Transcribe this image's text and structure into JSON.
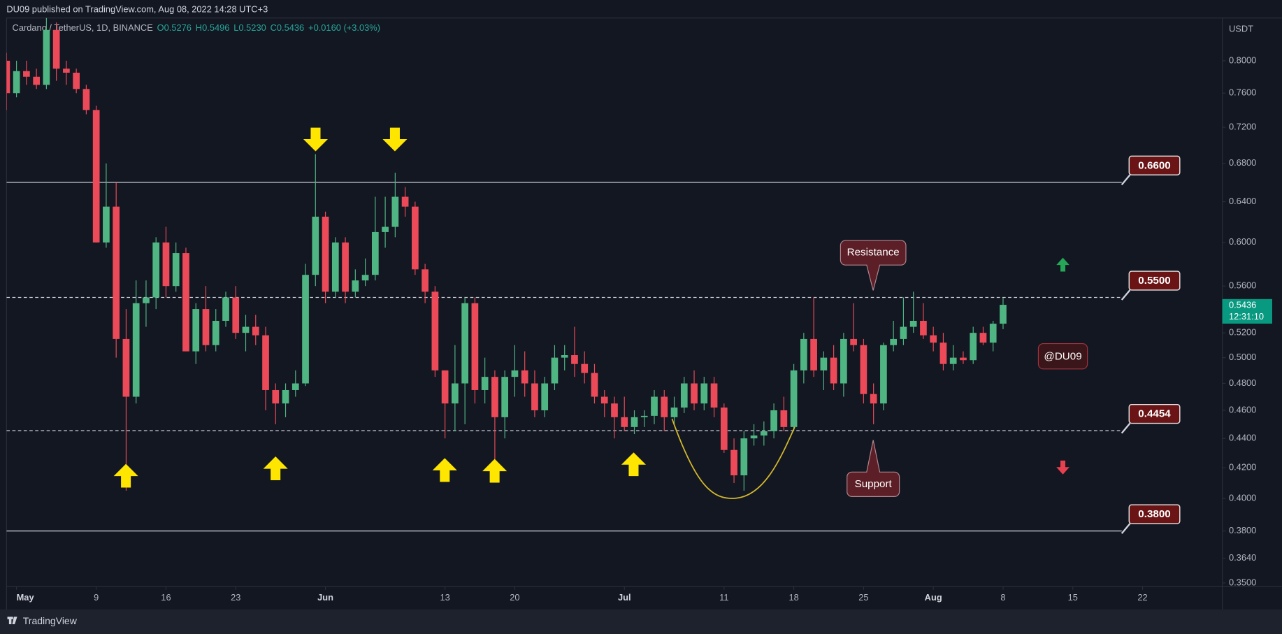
{
  "chart_data": {
    "type": "candlestick",
    "publisher": "DU09 published on TradingView.com, Aug 08, 2022 14:28 UTC+3",
    "title": "Cardano / TetherUS, 1D, BINANCE",
    "ohlc_legend": [
      "O0.5276",
      "H0.5496",
      "L0.5230",
      "C0.5436",
      "+0.0160 (+3.03%)"
    ],
    "y_unit": "USDT",
    "brand": "TradingView",
    "last_price_label": "0.5436",
    "countdown": "12:31:10",
    "annotations": [
      "Resistance",
      "Support",
      "@DU09"
    ],
    "log_scale": true,
    "grid": false,
    "up_color": "#4fb683",
    "down_color": "#ec4a58",
    "xlim": [
      "2022-04-30",
      "2022-08-30"
    ],
    "ylim": [
      0.348,
      0.856
    ],
    "xticks": [
      {
        "value": "2022-05-01",
        "label": "May"
      },
      {
        "value": "2022-05-09",
        "label": "9"
      },
      {
        "value": "2022-05-16",
        "label": "16"
      },
      {
        "value": "2022-05-23",
        "label": "23"
      },
      {
        "value": "2022-06-01",
        "label": "Jun"
      },
      {
        "value": "2022-06-13",
        "label": "13"
      },
      {
        "value": "2022-06-20",
        "label": "20"
      },
      {
        "value": "2022-07-01",
        "label": "Jul"
      },
      {
        "value": "2022-07-11",
        "label": "11"
      },
      {
        "value": "2022-07-18",
        "label": "18"
      },
      {
        "value": "2022-07-25",
        "label": "25"
      },
      {
        "value": "2022-08-01",
        "label": "Aug"
      },
      {
        "value": "2022-08-08",
        "label": "8"
      },
      {
        "value": "2022-08-15",
        "label": "15"
      },
      {
        "value": "2022-08-22",
        "label": "22"
      }
    ],
    "yticks": [
      {
        "value": 0.35,
        "label": "0.3500"
      },
      {
        "value": 0.364,
        "label": "0.3640"
      },
      {
        "value": 0.38,
        "label": "0.3800"
      },
      {
        "value": 0.4,
        "label": "0.4000"
      },
      {
        "value": 0.42,
        "label": "0.4200"
      },
      {
        "value": 0.44,
        "label": "0.4400"
      },
      {
        "value": 0.46,
        "label": "0.4600"
      },
      {
        "value": 0.48,
        "label": "0.4800"
      },
      {
        "value": 0.5,
        "label": "0.5000"
      },
      {
        "value": 0.52,
        "label": "0.5200"
      },
      {
        "value": 0.56,
        "label": "0.5600"
      },
      {
        "value": 0.6,
        "label": "0.6000"
      },
      {
        "value": 0.64,
        "label": "0.6400"
      },
      {
        "value": 0.68,
        "label": "0.6800"
      },
      {
        "value": 0.72,
        "label": "0.7200"
      },
      {
        "value": 0.76,
        "label": "0.7600"
      },
      {
        "value": 0.8,
        "label": "0.8000"
      }
    ],
    "levels": [
      {
        "value": 0.66,
        "label": "0.6600",
        "dashed": false
      },
      {
        "value": 0.55,
        "label": "0.5500",
        "dashed": true
      },
      {
        "value": 0.4454,
        "label": "0.4454",
        "dashed": true
      },
      {
        "value": 0.38,
        "label": "0.3800",
        "dashed": false
      }
    ],
    "x": [
      "2022-04-30",
      "2022-05-01",
      "2022-05-02",
      "2022-05-03",
      "2022-05-04",
      "2022-05-05",
      "2022-05-06",
      "2022-05-07",
      "2022-05-08",
      "2022-05-09",
      "2022-05-10",
      "2022-05-11",
      "2022-05-12",
      "2022-05-13",
      "2022-05-14",
      "2022-05-15",
      "2022-05-16",
      "2022-05-17",
      "2022-05-18",
      "2022-05-19",
      "2022-05-20",
      "2022-05-21",
      "2022-05-22",
      "2022-05-23",
      "2022-05-24",
      "2022-05-25",
      "2022-05-26",
      "2022-05-27",
      "2022-05-28",
      "2022-05-29",
      "2022-05-30",
      "2022-05-31",
      "2022-06-01",
      "2022-06-02",
      "2022-06-03",
      "2022-06-04",
      "2022-06-05",
      "2022-06-06",
      "2022-06-07",
      "2022-06-08",
      "2022-06-09",
      "2022-06-10",
      "2022-06-11",
      "2022-06-12",
      "2022-06-13",
      "2022-06-14",
      "2022-06-15",
      "2022-06-16",
      "2022-06-17",
      "2022-06-18",
      "2022-06-19",
      "2022-06-20",
      "2022-06-21",
      "2022-06-22",
      "2022-06-23",
      "2022-06-24",
      "2022-06-25",
      "2022-06-26",
      "2022-06-27",
      "2022-06-28",
      "2022-06-29",
      "2022-06-30",
      "2022-07-01",
      "2022-07-02",
      "2022-07-03",
      "2022-07-04",
      "2022-07-05",
      "2022-07-06",
      "2022-07-07",
      "2022-07-08",
      "2022-07-09",
      "2022-07-10",
      "2022-07-11",
      "2022-07-12",
      "2022-07-13",
      "2022-07-14",
      "2022-07-15",
      "2022-07-16",
      "2022-07-17",
      "2022-07-18",
      "2022-07-19",
      "2022-07-20",
      "2022-07-21",
      "2022-07-22",
      "2022-07-23",
      "2022-07-24",
      "2022-07-25",
      "2022-07-26",
      "2022-07-27",
      "2022-07-28",
      "2022-07-29",
      "2022-07-30",
      "2022-07-31",
      "2022-08-01",
      "2022-08-02",
      "2022-08-03",
      "2022-08-04",
      "2022-08-05",
      "2022-08-06",
      "2022-08-07",
      "2022-08-08"
    ],
    "open": [
      0.8,
      0.76,
      0.787,
      0.78,
      0.77,
      0.84,
      0.79,
      0.785,
      0.765,
      0.74,
      0.6,
      0.635,
      0.515,
      0.47,
      0.545,
      0.55,
      0.6,
      0.56,
      0.59,
      0.505,
      0.54,
      0.51,
      0.53,
      0.55,
      0.52,
      0.525,
      0.518,
      0.475,
      0.465,
      0.475,
      0.48,
      0.57,
      0.625,
      0.555,
      0.6,
      0.555,
      0.565,
      0.57,
      0.61,
      0.615,
      0.645,
      0.635,
      0.575,
      0.555,
      0.49,
      0.465,
      0.48,
      0.545,
      0.475,
      0.485,
      0.455,
      0.485,
      0.49,
      0.48,
      0.46,
      0.48,
      0.5,
      0.502,
      0.495,
      0.488,
      0.47,
      0.465,
      0.455,
      0.448,
      0.455,
      0.456,
      0.47,
      0.455,
      0.462,
      0.48,
      0.465,
      0.48,
      0.462,
      0.432,
      0.415,
      0.44,
      0.442,
      0.445,
      0.46,
      0.448,
      0.49,
      0.515,
      0.49,
      0.5,
      0.48,
      0.515,
      0.51,
      0.472,
      0.465,
      0.51,
      0.515,
      0.525,
      0.53,
      0.518,
      0.512,
      0.495,
      0.5,
      0.498,
      0.52,
      0.512,
      0.5276
    ],
    "high": [
      0.81,
      0.8,
      0.8,
      0.79,
      0.86,
      0.85,
      0.8,
      0.79,
      0.77,
      0.745,
      0.68,
      0.66,
      0.54,
      0.565,
      0.565,
      0.605,
      0.615,
      0.6,
      0.595,
      0.545,
      0.56,
      0.54,
      0.555,
      0.56,
      0.535,
      0.535,
      0.525,
      0.48,
      0.48,
      0.49,
      0.58,
      0.69,
      0.63,
      0.605,
      0.605,
      0.575,
      0.585,
      0.645,
      0.645,
      0.67,
      0.655,
      0.64,
      0.58,
      0.56,
      0.49,
      0.51,
      0.55,
      0.55,
      0.5,
      0.49,
      0.49,
      0.51,
      0.505,
      0.49,
      0.485,
      0.51,
      0.51,
      0.525,
      0.505,
      0.495,
      0.475,
      0.47,
      0.47,
      0.46,
      0.46,
      0.475,
      0.475,
      0.47,
      0.485,
      0.49,
      0.485,
      0.485,
      0.465,
      0.44,
      0.445,
      0.45,
      0.452,
      0.465,
      0.47,
      0.495,
      0.52,
      0.55,
      0.505,
      0.51,
      0.52,
      0.545,
      0.515,
      0.48,
      0.512,
      0.53,
      0.55,
      0.555,
      0.545,
      0.525,
      0.52,
      0.51,
      0.505,
      0.525,
      0.525,
      0.53,
      0.5496
    ],
    "low": [
      0.74,
      0.755,
      0.77,
      0.765,
      0.765,
      0.775,
      0.77,
      0.76,
      0.735,
      0.6,
      0.595,
      0.5,
      0.405,
      0.465,
      0.525,
      0.54,
      0.55,
      0.555,
      0.505,
      0.495,
      0.505,
      0.505,
      0.525,
      0.515,
      0.505,
      0.51,
      0.46,
      0.45,
      0.455,
      0.47,
      0.478,
      0.56,
      0.545,
      0.55,
      0.545,
      0.55,
      0.56,
      0.565,
      0.595,
      0.605,
      0.625,
      0.57,
      0.545,
      0.485,
      0.44,
      0.445,
      0.45,
      0.465,
      0.465,
      0.425,
      0.44,
      0.47,
      0.47,
      0.455,
      0.455,
      0.475,
      0.49,
      0.485,
      0.48,
      0.465,
      0.455,
      0.44,
      0.445,
      0.443,
      0.448,
      0.45,
      0.445,
      0.45,
      0.458,
      0.46,
      0.46,
      0.455,
      0.43,
      0.41,
      0.405,
      0.435,
      0.435,
      0.44,
      0.445,
      0.445,
      0.48,
      0.485,
      0.475,
      0.475,
      0.47,
      0.505,
      0.465,
      0.45,
      0.46,
      0.505,
      0.51,
      0.52,
      0.515,
      0.505,
      0.49,
      0.49,
      0.495,
      0.495,
      0.51,
      0.505,
      0.523
    ],
    "close": [
      0.76,
      0.787,
      0.78,
      0.77,
      0.84,
      0.79,
      0.785,
      0.765,
      0.74,
      0.6,
      0.635,
      0.515,
      0.47,
      0.545,
      0.55,
      0.6,
      0.56,
      0.59,
      0.505,
      0.54,
      0.51,
      0.53,
      0.55,
      0.52,
      0.525,
      0.518,
      0.475,
      0.465,
      0.475,
      0.48,
      0.57,
      0.625,
      0.555,
      0.6,
      0.555,
      0.565,
      0.57,
      0.61,
      0.615,
      0.645,
      0.635,
      0.575,
      0.555,
      0.49,
      0.465,
      0.48,
      0.545,
      0.475,
      0.485,
      0.455,
      0.485,
      0.49,
      0.48,
      0.46,
      0.48,
      0.5,
      0.502,
      0.495,
      0.488,
      0.47,
      0.465,
      0.455,
      0.448,
      0.455,
      0.456,
      0.47,
      0.455,
      0.462,
      0.48,
      0.465,
      0.48,
      0.462,
      0.432,
      0.415,
      0.44,
      0.442,
      0.445,
      0.46,
      0.448,
      0.49,
      0.515,
      0.49,
      0.5,
      0.48,
      0.515,
      0.51,
      0.472,
      0.465,
      0.51,
      0.515,
      0.525,
      0.53,
      0.518,
      0.512,
      0.495,
      0.5,
      0.498,
      0.52,
      0.512,
      0.5276,
      0.5436
    ]
  }
}
